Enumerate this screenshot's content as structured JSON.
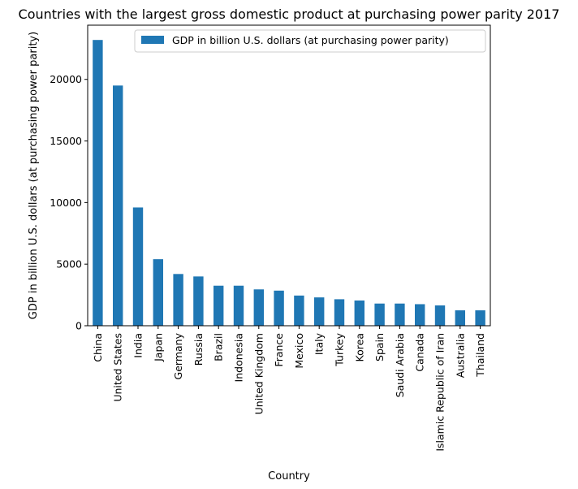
{
  "chart_data": {
    "type": "bar",
    "title": "Countries with the largest gross domestic product at purchasing power parity 2017",
    "xlabel": "Country",
    "ylabel": "GDP in billion U.S. dollars (at purchasing power parity)",
    "categories": [
      "China",
      "United States",
      "India",
      "Japan",
      "Germany",
      "Russia",
      "Brazil",
      "Indonesia",
      "United Kingdom",
      "France",
      "Mexico",
      "Italy",
      "Turkey",
      "Korea",
      "Spain",
      "Saudi Arabia",
      "Canada",
      "Islamic Republic of Iran",
      "Australia",
      "Thailand"
    ],
    "series": [
      {
        "name": "GDP in billion U.S. dollars (at purchasing power parity)",
        "values": [
          23200,
          19500,
          9600,
          5400,
          4200,
          4000,
          3250,
          3250,
          2950,
          2850,
          2450,
          2300,
          2150,
          2050,
          1800,
          1800,
          1750,
          1650,
          1250,
          1250
        ]
      }
    ],
    "ylim": [
      0,
      24400
    ],
    "yticks": [
      0,
      5000,
      10000,
      15000,
      20000
    ],
    "color": "#1f77b4",
    "grid": false,
    "legend_position": "top-right"
  }
}
